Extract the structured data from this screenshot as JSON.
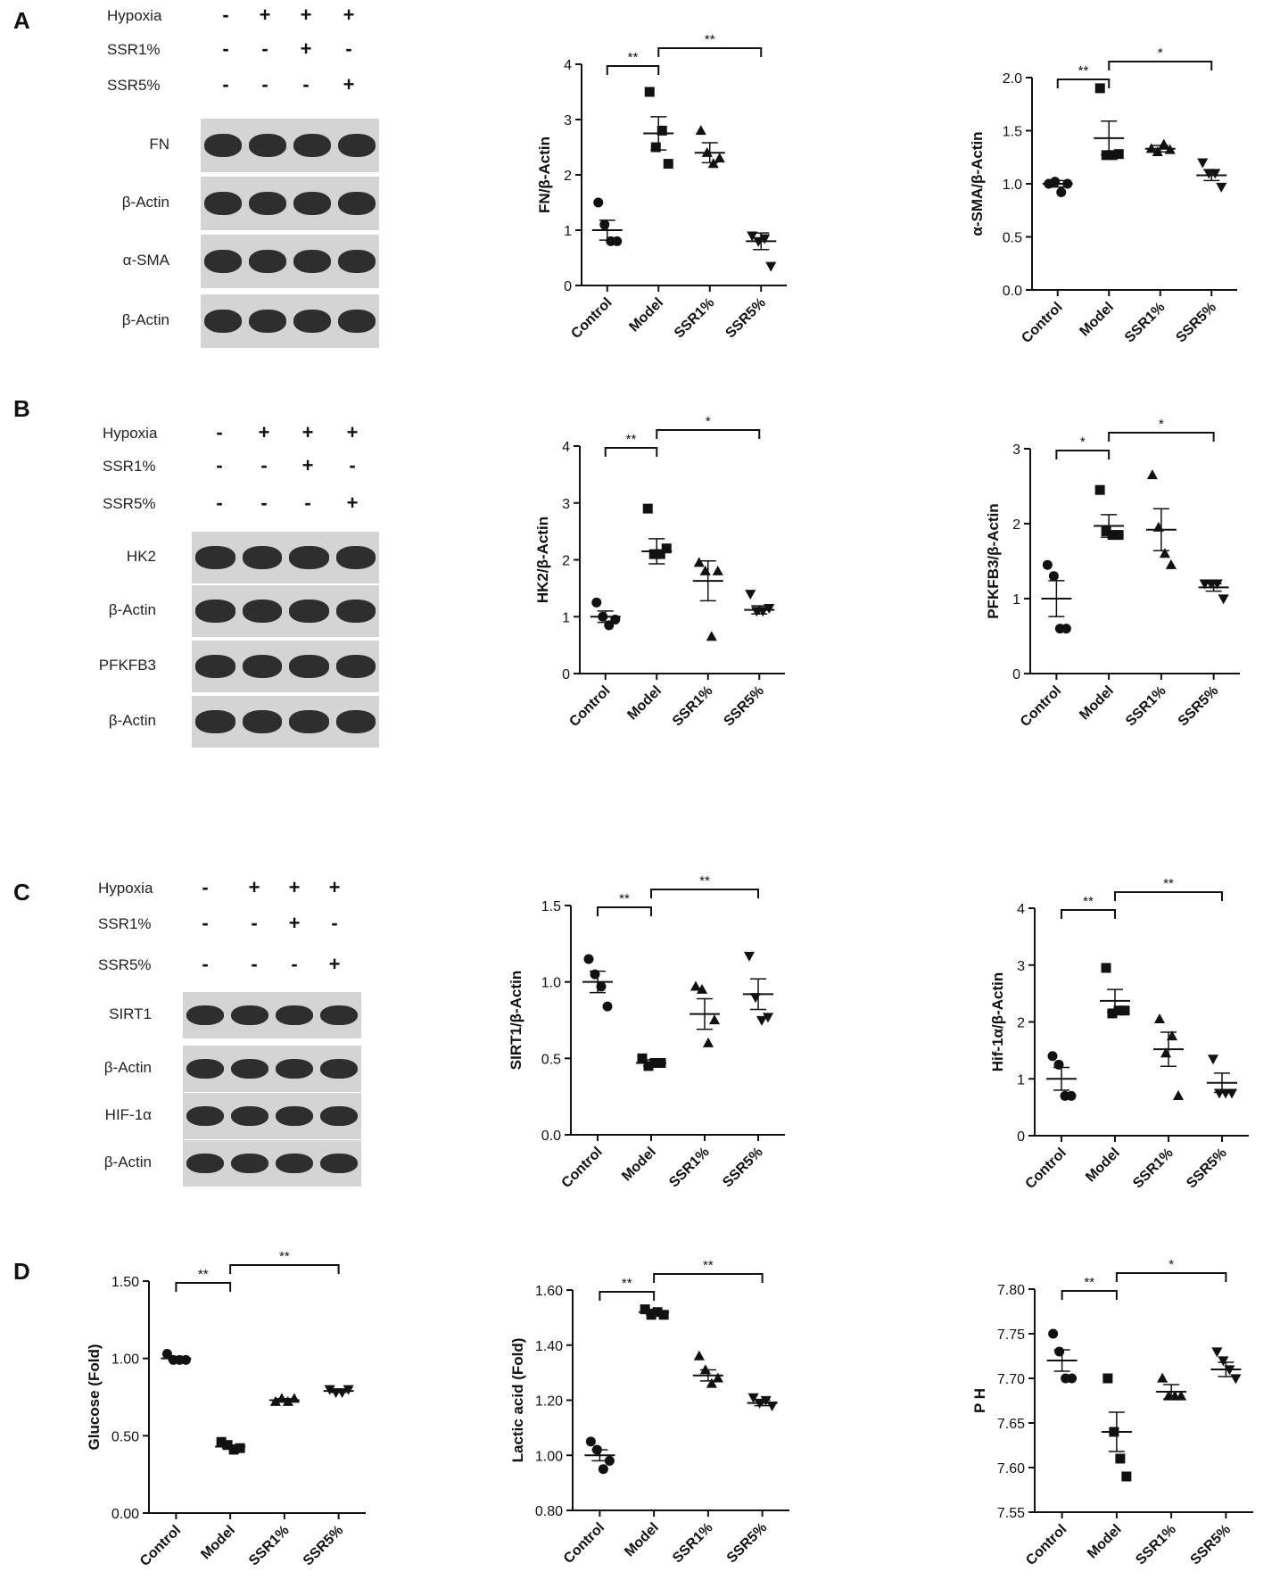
{
  "panels": {
    "A": {
      "letter": "A",
      "conditions": [
        {
          "label": "Hypoxia",
          "signs": [
            "-",
            "+",
            "+",
            "+"
          ]
        },
        {
          "label": "SSR1%",
          "signs": [
            "-",
            "-",
            "+",
            "-"
          ]
        },
        {
          "label": "SSR5%",
          "signs": [
            "-",
            "-",
            "-",
            "+"
          ]
        }
      ],
      "bands": [
        "FN",
        "β-Actin",
        "α-SMA",
        "β-Actin"
      ]
    },
    "B": {
      "letter": "B",
      "conditions": [
        {
          "label": "Hypoxia",
          "signs": [
            "-",
            "+",
            "+",
            "+"
          ]
        },
        {
          "label": "SSR1%",
          "signs": [
            "-",
            "-",
            "+",
            "-"
          ]
        },
        {
          "label": "SSR5%",
          "signs": [
            "-",
            "-",
            "-",
            "+"
          ]
        }
      ],
      "bands": [
        "HK2",
        "β-Actin",
        "PFKFB3",
        "β-Actin"
      ]
    },
    "C": {
      "letter": "C",
      "conditions": [
        {
          "label": "Hypoxia",
          "signs": [
            "-",
            "+",
            "+",
            "+"
          ]
        },
        {
          "label": "SSR1%",
          "signs": [
            "-",
            "-",
            "+",
            "-"
          ]
        },
        {
          "label": "SSR5%",
          "signs": [
            "-",
            "-",
            "-",
            "+"
          ]
        }
      ],
      "bands": [
        "SIRT1",
        "β-Actin",
        "HIF-1α",
        "β-Actin"
      ]
    },
    "D": {
      "letter": "D"
    }
  },
  "chart_data": [
    {
      "type": "scatter",
      "panel": "A",
      "ylabel": "FN/β-Actin",
      "ylim": [
        0,
        4
      ],
      "yticks": [
        "0",
        "1",
        "2",
        "3",
        "4"
      ],
      "categories": [
        "Control",
        "Model",
        "SSR1%",
        "SSR5%"
      ],
      "markers": [
        "circle",
        "square",
        "triangle",
        "invtriangle"
      ],
      "points": [
        [
          1.5,
          1.1,
          0.8,
          0.8
        ],
        [
          3.5,
          2.5,
          2.8,
          2.2
        ],
        [
          2.8,
          2.4,
          2.2,
          2.3
        ],
        [
          0.9,
          0.8,
          0.85,
          0.35
        ]
      ],
      "mean": [
        1.0,
        2.75,
        2.4,
        0.8
      ],
      "sem": [
        0.18,
        0.3,
        0.18,
        0.15
      ],
      "sig": [
        {
          "from": 0,
          "to": 1,
          "label": "**"
        },
        {
          "from": 1,
          "to": 3,
          "label": "**"
        }
      ]
    },
    {
      "type": "scatter",
      "panel": "A",
      "ylabel": "α-SMA/β-Actin",
      "ylim": [
        0,
        2.0
      ],
      "yticks": [
        "0.0",
        "0.5",
        "1.0",
        "1.5",
        "2.0"
      ],
      "categories": [
        "Control",
        "Model",
        "SSR1%",
        "SSR5%"
      ],
      "markers": [
        "circle",
        "square",
        "triangle",
        "invtriangle"
      ],
      "points": [
        [
          1.0,
          1.02,
          0.92,
          1.0
        ],
        [
          1.9,
          1.27,
          1.27,
          1.28
        ],
        [
          1.33,
          1.3,
          1.37,
          1.32
        ],
        [
          1.2,
          1.1,
          1.1,
          0.97
        ]
      ],
      "mean": [
        1.0,
        1.43,
        1.33,
        1.08
      ],
      "sem": [
        0.03,
        0.16,
        0.03,
        0.05
      ],
      "sig": [
        {
          "from": 0,
          "to": 1,
          "label": "**"
        },
        {
          "from": 1,
          "to": 3,
          "label": "*"
        }
      ]
    },
    {
      "type": "scatter",
      "panel": "B",
      "ylabel": "HK2/β-Actin",
      "ylim": [
        0,
        4
      ],
      "yticks": [
        "0",
        "1",
        "2",
        "3",
        "4"
      ],
      "categories": [
        "Control",
        "Model",
        "SSR1%",
        "SSR5%"
      ],
      "markers": [
        "circle",
        "square",
        "triangle",
        "invtriangle"
      ],
      "points": [
        [
          1.25,
          1.0,
          0.85,
          0.95
        ],
        [
          2.9,
          2.1,
          2.1,
          2.2
        ],
        [
          1.95,
          1.8,
          0.65,
          1.8
        ],
        [
          1.4,
          1.1,
          1.1,
          1.15
        ]
      ],
      "mean": [
        1.0,
        2.15,
        1.63,
        1.12
      ],
      "sem": [
        0.1,
        0.22,
        0.35,
        0.07
      ],
      "sig": [
        {
          "from": 0,
          "to": 1,
          "label": "**"
        },
        {
          "from": 1,
          "to": 3,
          "label": "*"
        }
      ]
    },
    {
      "type": "scatter",
      "panel": "B",
      "ylabel": "PFKFB3/β-Actin",
      "ylim": [
        0,
        3
      ],
      "yticks": [
        "0",
        "1",
        "2",
        "3"
      ],
      "categories": [
        "Control",
        "Model",
        "SSR1%",
        "SSR5%"
      ],
      "markers": [
        "circle",
        "square",
        "triangle",
        "invtriangle"
      ],
      "points": [
        [
          1.45,
          1.3,
          0.6,
          0.6
        ],
        [
          2.45,
          1.9,
          1.85,
          1.85
        ],
        [
          2.65,
          1.95,
          1.6,
          1.45
        ],
        [
          1.2,
          1.2,
          1.2,
          1.0
        ]
      ],
      "mean": [
        1.0,
        1.97,
        1.92,
        1.15
      ],
      "sem": [
        0.24,
        0.15,
        0.28,
        0.05
      ],
      "sig": [
        {
          "from": 0,
          "to": 1,
          "label": "*"
        },
        {
          "from": 1,
          "to": 3,
          "label": "*"
        }
      ]
    },
    {
      "type": "scatter",
      "panel": "C",
      "ylabel": "SIRT1/β-Actin",
      "ylim": [
        0,
        1.5
      ],
      "yticks": [
        "0.0",
        "0.5",
        "1.0",
        "1.5"
      ],
      "categories": [
        "Control",
        "Model",
        "SSR1%",
        "SSR5%"
      ],
      "markers": [
        "circle",
        "square",
        "triangle",
        "invtriangle"
      ],
      "points": [
        [
          1.15,
          1.05,
          0.97,
          0.84
        ],
        [
          0.5,
          0.45,
          0.47,
          0.47
        ],
        [
          0.97,
          0.95,
          0.6,
          0.75
        ],
        [
          1.17,
          0.9,
          0.75,
          0.77
        ]
      ],
      "mean": [
        1.0,
        0.47,
        0.79,
        0.92
      ],
      "sem": [
        0.07,
        0.02,
        0.1,
        0.1
      ],
      "sig": [
        {
          "from": 0,
          "to": 1,
          "label": "**"
        },
        {
          "from": 1,
          "to": 3,
          "label": "**"
        }
      ]
    },
    {
      "type": "scatter",
      "panel": "C",
      "ylabel": "Hif-1α/β-Actin",
      "ylim": [
        0,
        4
      ],
      "yticks": [
        "0",
        "1",
        "2",
        "3",
        "4"
      ],
      "categories": [
        "Control",
        "Model",
        "SSR1%",
        "SSR5%"
      ],
      "markers": [
        "circle",
        "square",
        "triangle",
        "invtriangle"
      ],
      "points": [
        [
          1.4,
          1.25,
          0.7,
          0.7
        ],
        [
          2.95,
          2.15,
          2.2,
          2.2
        ],
        [
          2.05,
          1.45,
          1.75,
          0.7
        ],
        [
          1.35,
          0.75,
          0.75,
          0.75
        ]
      ],
      "mean": [
        1.0,
        2.37,
        1.52,
        0.93
      ],
      "sem": [
        0.2,
        0.2,
        0.3,
        0.17
      ],
      "sig": [
        {
          "from": 0,
          "to": 1,
          "label": "**"
        },
        {
          "from": 1,
          "to": 3,
          "label": "**"
        }
      ]
    },
    {
      "type": "scatter",
      "panel": "D",
      "ylabel": "Glucose (Fold)",
      "ylim": [
        0,
        1.5
      ],
      "yticks": [
        "0.00",
        "0.50",
        "1.00",
        "1.50"
      ],
      "categories": [
        "Control",
        "Model",
        "SSR1%",
        "SSR5%"
      ],
      "markers": [
        "circle",
        "square",
        "triangle",
        "invtriangle"
      ],
      "points": [
        [
          1.03,
          0.99,
          0.99,
          0.99
        ],
        [
          0.46,
          0.44,
          0.41,
          0.42
        ],
        [
          0.72,
          0.74,
          0.72,
          0.74
        ],
        [
          0.8,
          0.78,
          0.78,
          0.8
        ]
      ],
      "mean": [
        1.0,
        0.43,
        0.73,
        0.79
      ],
      "sem": [
        0.01,
        0.01,
        0.01,
        0.01
      ],
      "sig": [
        {
          "from": 0,
          "to": 1,
          "label": "**"
        },
        {
          "from": 1,
          "to": 3,
          "label": "**"
        }
      ]
    },
    {
      "type": "scatter",
      "panel": "D",
      "ylabel": "Lactic acid (Fold)",
      "ylim": [
        0.8,
        1.6
      ],
      "yticks": [
        "0.80",
        "1.00",
        "1.20",
        "1.40",
        "1.60"
      ],
      "categories": [
        "Control",
        "Model",
        "SSR1%",
        "SSR5%"
      ],
      "markers": [
        "circle",
        "square",
        "triangle",
        "invtriangle"
      ],
      "points": [
        [
          1.05,
          1.02,
          0.95,
          0.98
        ],
        [
          1.53,
          1.51,
          1.52,
          1.51
        ],
        [
          1.36,
          1.31,
          1.26,
          1.28
        ],
        [
          1.21,
          1.19,
          1.2,
          1.18
        ]
      ],
      "mean": [
        1.0,
        1.52,
        1.29,
        1.19
      ],
      "sem": [
        0.02,
        0.01,
        0.02,
        0.01
      ],
      "sig": [
        {
          "from": 0,
          "to": 1,
          "label": "**"
        },
        {
          "from": 1,
          "to": 3,
          "label": "**"
        }
      ]
    },
    {
      "type": "scatter",
      "panel": "D",
      "ylabel": "P H",
      "ylim": [
        7.55,
        7.8
      ],
      "yticks": [
        "7.55",
        "7.60",
        "7.65",
        "7.70",
        "7.75",
        "7.80"
      ],
      "categories": [
        "Control",
        "Model",
        "SSR1%",
        "SSR5%"
      ],
      "markers": [
        "circle",
        "square",
        "triangle",
        "invtriangle"
      ],
      "points": [
        [
          7.75,
          7.73,
          7.7,
          7.7
        ],
        [
          7.7,
          7.64,
          7.61,
          7.59
        ],
        [
          7.7,
          7.68,
          7.68,
          7.68
        ],
        [
          7.73,
          7.72,
          7.71,
          7.7
        ]
      ],
      "mean": [
        7.72,
        7.64,
        7.685,
        7.71
      ],
      "sem": [
        0.012,
        0.022,
        0.008,
        0.008
      ],
      "sig": [
        {
          "from": 0,
          "to": 1,
          "label": "**"
        },
        {
          "from": 1,
          "to": 3,
          "label": "*"
        }
      ]
    }
  ]
}
